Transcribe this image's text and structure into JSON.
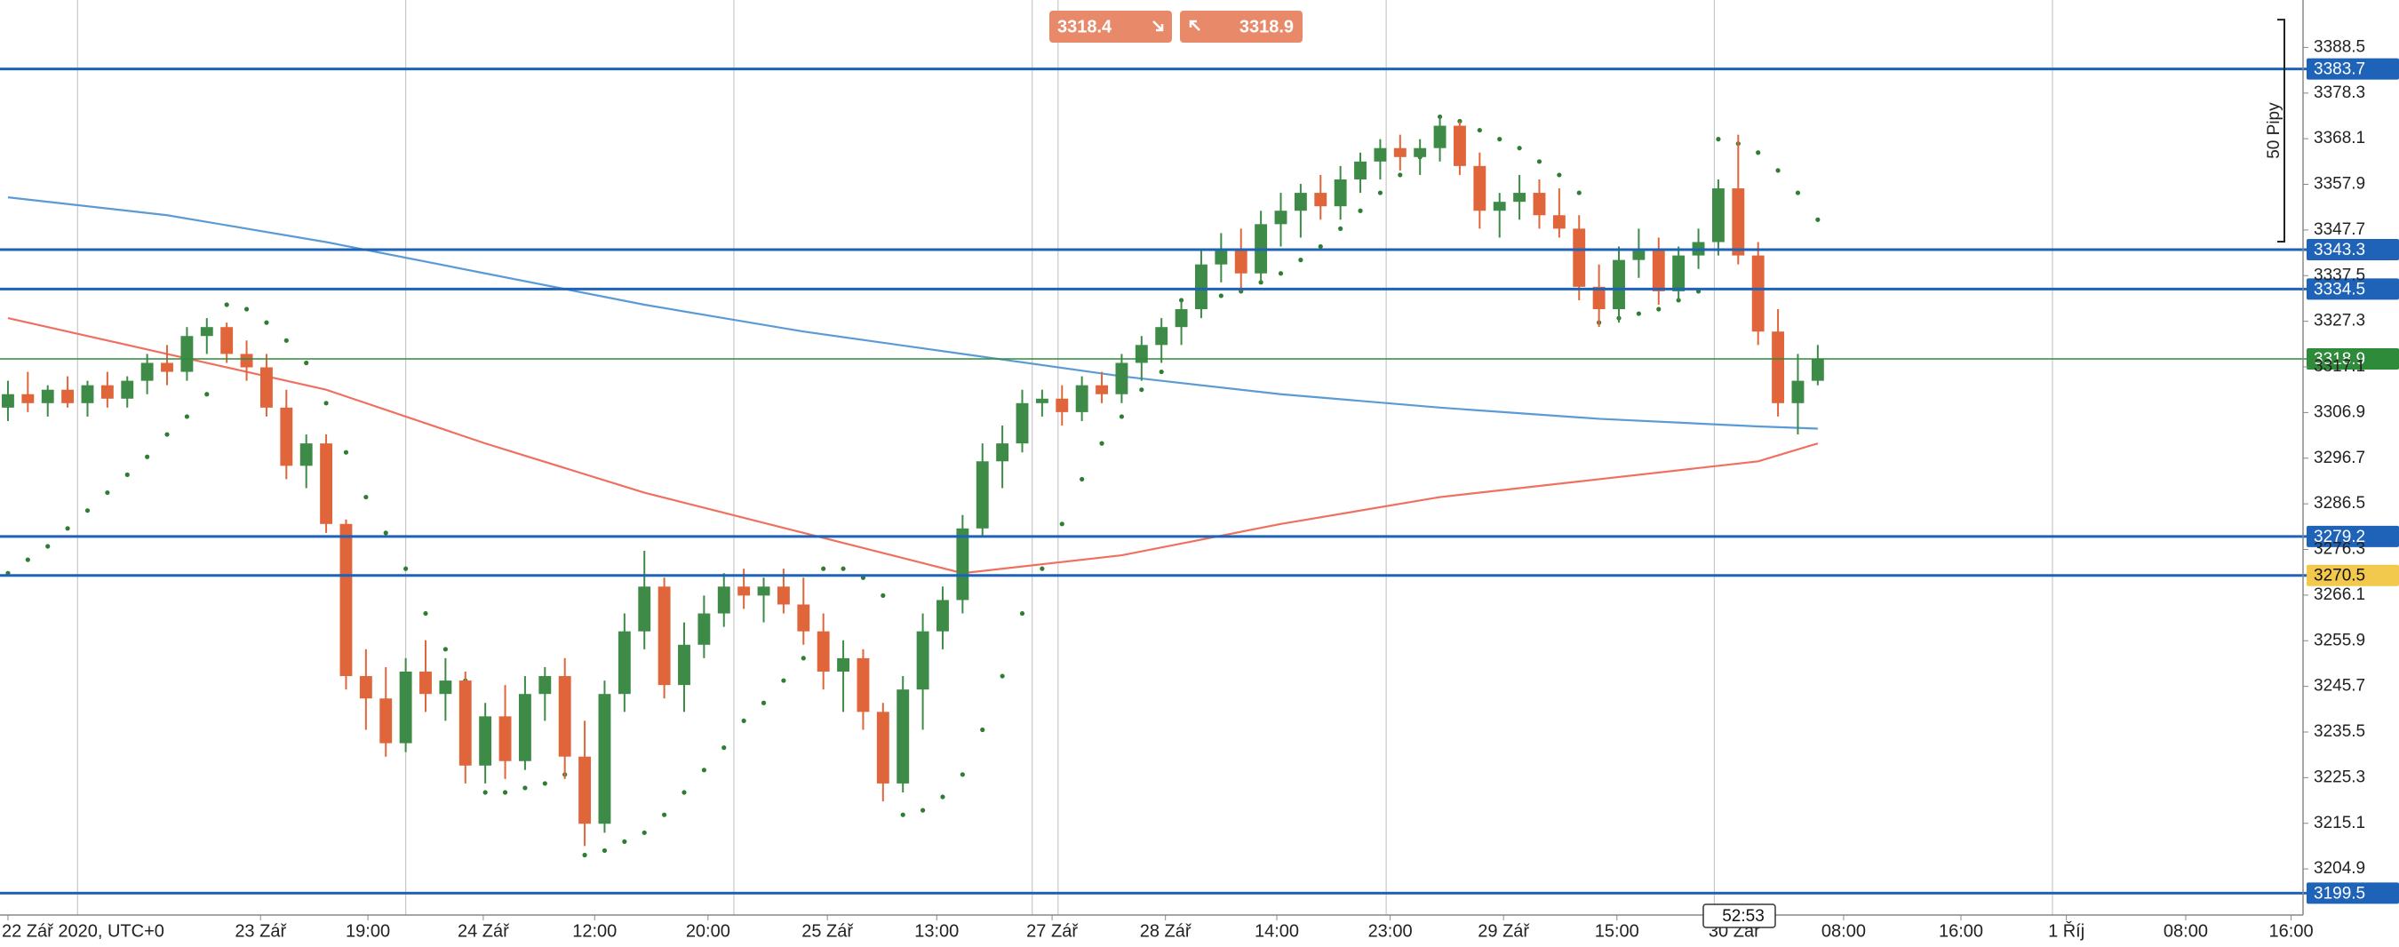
{
  "chart_data": {
    "type": "candlestick",
    "up_color": "#3d8b46",
    "down_color": "#e0653a",
    "ylim": [
      3194.6,
      3399.1
    ],
    "yticks": [
      3388.5,
      3378.3,
      3368.1,
      3357.9,
      3347.7,
      3337.5,
      3327.3,
      3317.1,
      3306.9,
      3296.7,
      3286.5,
      3276.3,
      3266.1,
      3255.9,
      3245.7,
      3235.5,
      3225.3,
      3215.1,
      3204.9
    ],
    "xlim": [
      -0.4,
      115.4
    ],
    "xticks": [
      {
        "value": 0,
        "label": "22 Zář 2020, UTC+0"
      },
      {
        "value": 12.7,
        "label": "23 Zář"
      },
      {
        "value": 18.1,
        "label": "19:00"
      },
      {
        "value": 23.9,
        "label": "24 Zář"
      },
      {
        "value": 29.5,
        "label": "12:00"
      },
      {
        "value": 35.2,
        "label": "20:00"
      },
      {
        "value": 41.2,
        "label": "25 Zář"
      },
      {
        "value": 46.7,
        "label": "13:00"
      },
      {
        "value": 52.5,
        "label": "27 Zář"
      },
      {
        "value": 58.2,
        "label": "28 Zář"
      },
      {
        "value": 63.8,
        "label": "14:00"
      },
      {
        "value": 69.5,
        "label": "23:00"
      },
      {
        "value": 75.2,
        "label": "29 Zář"
      },
      {
        "value": 80.9,
        "label": "15:00"
      },
      {
        "value": 86.8,
        "label": "30 Zář"
      },
      {
        "value": 92.3,
        "label": "08:00"
      },
      {
        "value": 98.2,
        "label": "16:00"
      },
      {
        "value": 103.5,
        "label": "1 Říj"
      },
      {
        "value": 109.5,
        "label": "08:00"
      },
      {
        "value": 114.8,
        "label": "16:00"
      }
    ],
    "xgrid": [
      3.5,
      20,
      36.5,
      51.5,
      52.8,
      69.3,
      85.8,
      102.8
    ],
    "ohlc": [
      [
        3308,
        3314,
        3305,
        3311
      ],
      [
        3311,
        3316,
        3307,
        3309
      ],
      [
        3309,
        3313,
        3306,
        3312
      ],
      [
        3312,
        3315,
        3308,
        3309
      ],
      [
        3309,
        3314,
        3306,
        3313
      ],
      [
        3313,
        3316,
        3308,
        3310
      ],
      [
        3310,
        3315,
        3308,
        3314
      ],
      [
        3314,
        3320,
        3311,
        3318
      ],
      [
        3318,
        3322,
        3313,
        3316
      ],
      [
        3316,
        3326,
        3314,
        3324
      ],
      [
        3324,
        3328,
        3320,
        3326
      ],
      [
        3326,
        3327,
        3318,
        3320
      ],
      [
        3320,
        3323,
        3314,
        3317
      ],
      [
        3317,
        3320,
        3306,
        3308
      ],
      [
        3308,
        3312,
        3292,
        3295
      ],
      [
        3295,
        3302,
        3290,
        3300
      ],
      [
        3300,
        3302,
        3280,
        3282
      ],
      [
        3282,
        3283,
        3245,
        3248
      ],
      [
        3248,
        3254,
        3236,
        3243
      ],
      [
        3243,
        3250,
        3230,
        3233
      ],
      [
        3233,
        3252,
        3231,
        3249
      ],
      [
        3249,
        3256,
        3240,
        3244
      ],
      [
        3244,
        3252,
        3238,
        3247
      ],
      [
        3247,
        3249,
        3224,
        3228
      ],
      [
        3228,
        3242,
        3224,
        3239
      ],
      [
        3239,
        3246,
        3225,
        3229
      ],
      [
        3229,
        3248,
        3227,
        3244
      ],
      [
        3244,
        3250,
        3238,
        3248
      ],
      [
        3248,
        3252,
        3225,
        3230
      ],
      [
        3230,
        3238,
        3210,
        3215
      ],
      [
        3215,
        3247,
        3213,
        3244
      ],
      [
        3244,
        3262,
        3240,
        3258
      ],
      [
        3258,
        3276,
        3254,
        3268
      ],
      [
        3268,
        3270,
        3243,
        3246
      ],
      [
        3246,
        3260,
        3240,
        3255
      ],
      [
        3255,
        3266,
        3252,
        3262
      ],
      [
        3262,
        3271,
        3259,
        3268
      ],
      [
        3268,
        3272,
        3263,
        3266
      ],
      [
        3266,
        3270,
        3260,
        3268
      ],
      [
        3268,
        3272,
        3262,
        3264
      ],
      [
        3264,
        3270,
        3255,
        3258
      ],
      [
        3258,
        3262,
        3245,
        3249
      ],
      [
        3249,
        3256,
        3240,
        3252
      ],
      [
        3252,
        3254,
        3236,
        3240
      ],
      [
        3240,
        3242,
        3220,
        3224
      ],
      [
        3224,
        3248,
        3222,
        3245
      ],
      [
        3245,
        3262,
        3236,
        3258
      ],
      [
        3258,
        3268,
        3254,
        3265
      ],
      [
        3265,
        3284,
        3262,
        3281
      ],
      [
        3281,
        3300,
        3279,
        3296
      ],
      [
        3296,
        3304,
        3290,
        3300
      ],
      [
        3300,
        3312,
        3298,
        3309
      ],
      [
        3309,
        3312,
        3306,
        3310
      ],
      [
        3310,
        3313,
        3304,
        3307
      ],
      [
        3307,
        3315,
        3305,
        3313
      ],
      [
        3313,
        3316,
        3309,
        3311
      ],
      [
        3311,
        3320,
        3309,
        3318
      ],
      [
        3318,
        3324,
        3314,
        3322
      ],
      [
        3322,
        3328,
        3318,
        3326
      ],
      [
        3326,
        3332,
        3322,
        3330
      ],
      [
        3330,
        3343,
        3328,
        3340
      ],
      [
        3340,
        3347,
        3336,
        3343
      ],
      [
        3343,
        3348,
        3334,
        3338
      ],
      [
        3338,
        3352,
        3336,
        3349
      ],
      [
        3349,
        3356,
        3344,
        3352
      ],
      [
        3352,
        3358,
        3346,
        3356
      ],
      [
        3356,
        3360,
        3350,
        3353
      ],
      [
        3353,
        3362,
        3350,
        3359
      ],
      [
        3359,
        3365,
        3356,
        3363
      ],
      [
        3363,
        3368,
        3359,
        3366
      ],
      [
        3366,
        3369,
        3361,
        3364
      ],
      [
        3364,
        3368,
        3360,
        3366
      ],
      [
        3366,
        3373,
        3363,
        3371
      ],
      [
        3371,
        3372,
        3360,
        3362
      ],
      [
        3362,
        3365,
        3348,
        3352
      ],
      [
        3352,
        3356,
        3346,
        3354
      ],
      [
        3354,
        3360,
        3350,
        3356
      ],
      [
        3356,
        3359,
        3348,
        3351
      ],
      [
        3351,
        3357,
        3346,
        3348
      ],
      [
        3348,
        3351,
        3332,
        3335
      ],
      [
        3335,
        3340,
        3326,
        3330
      ],
      [
        3330,
        3344,
        3327,
        3341
      ],
      [
        3341,
        3348,
        3337,
        3343
      ],
      [
        3343,
        3346,
        3331,
        3334
      ],
      [
        3334,
        3344,
        3332,
        3342
      ],
      [
        3342,
        3348,
        3339,
        3345
      ],
      [
        3345,
        3359,
        3342,
        3357
      ],
      [
        3357,
        3369,
        3340,
        3342
      ],
      [
        3342,
        3345,
        3322,
        3325
      ],
      [
        3325,
        3330,
        3306,
        3309
      ],
      [
        3309,
        3320,
        3302,
        3314
      ],
      [
        3314,
        3322,
        3313,
        3318.9
      ]
    ],
    "indicators": [
      {
        "color": "#5b9bd5",
        "x": [
          0,
          8,
          16,
          24,
          32,
          40,
          48,
          56,
          64,
          72,
          80,
          88,
          91
        ],
        "values": [
          3355,
          3351,
          3345,
          3338,
          3331,
          3325,
          3320,
          3315,
          3311,
          3308,
          3305.5,
          3303.8,
          3303.3
        ]
      },
      {
        "color": "#f07060",
        "x": [
          0,
          8,
          16,
          24,
          32,
          40,
          48,
          56,
          64,
          72,
          80,
          88,
          91
        ],
        "values": [
          3328,
          3320,
          3312,
          3300,
          3289,
          3280,
          3271,
          3275,
          3282,
          3288,
          3292,
          3296,
          3300
        ]
      }
    ],
    "sar": {
      "color": "#2e7d32",
      "values": [
        3271,
        3274,
        3277,
        3281,
        3285,
        3289,
        3293,
        3297,
        3302,
        3306,
        3311,
        3331,
        3330,
        3327,
        3323,
        3318,
        3309,
        3298,
        3288,
        3280,
        3272,
        3262,
        3254,
        3247,
        3222,
        3222,
        3223,
        3224,
        3226,
        3208,
        3209,
        3211,
        3213,
        3217,
        3222,
        3227,
        3232,
        3238,
        3242,
        3247,
        3252,
        3272,
        3272,
        3270,
        3266,
        3217,
        3218,
        3221,
        3226,
        3236,
        3248,
        3262,
        3272,
        3282,
        3292,
        3300,
        3306,
        3312,
        3316,
        3332,
        3332,
        3333,
        3334,
        3336,
        3338,
        3341,
        3344,
        3348,
        3352,
        3356,
        3360,
        3364,
        3373,
        3372,
        3370,
        3368,
        3366,
        3363,
        3360,
        3356,
        3327,
        3328,
        3329,
        3330,
        3332,
        3334,
        3368,
        3367,
        3365,
        3361,
        3356,
        3350
      ]
    },
    "levels": [
      {
        "value": 3383.7,
        "line_color": "#1f63b8",
        "label_color": "#1f63b8",
        "line_width": 3
      },
      {
        "value": 3343.3,
        "line_color": "#1f63b8",
        "label_color": "#1f63b8",
        "line_width": 3
      },
      {
        "value": 3334.5,
        "line_color": "#1f63b8",
        "label_color": "#1f63b8",
        "line_width": 3
      },
      {
        "value": 3279.2,
        "line_color": "#1f63b8",
        "label_color": "#1f63b8",
        "line_width": 3
      },
      {
        "value": 3270.5,
        "line_color": "#1f63b8",
        "label_color": "#f2c94c",
        "line_width": 3
      },
      {
        "value": 3199.5,
        "line_color": "#1f63b8",
        "label_color": "#1f63b8",
        "line_width": 3
      },
      {
        "value": 3318.9,
        "line_color": "#2e8b3a",
        "label_color": "#2e8b3a",
        "line_width": 1.5
      }
    ],
    "sell": 3318.4,
    "buy": 3318.9,
    "ruler": {
      "label": "50 Pipy",
      "from": 3345.1,
      "to": 3394.7
    },
    "countdown": "52:53"
  }
}
